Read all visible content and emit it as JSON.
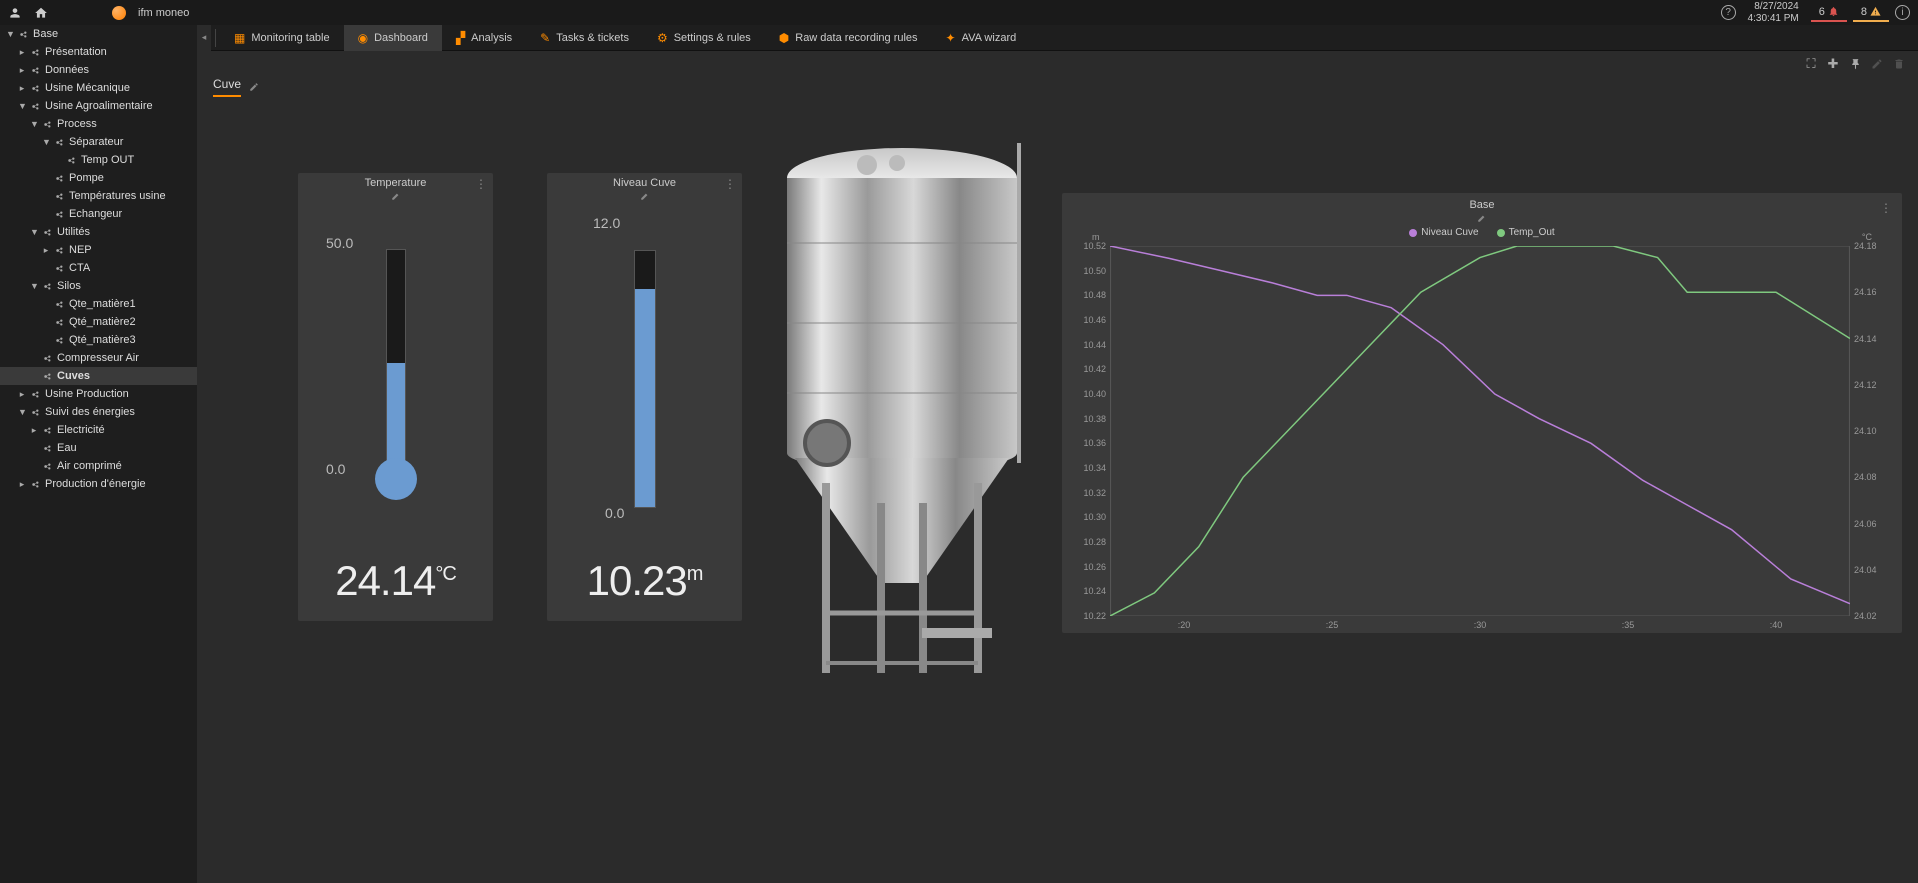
{
  "brand": "ifm moneo",
  "datetime": {
    "date": "8/27/2024",
    "time": "4:30:41 PM"
  },
  "alerts": {
    "red_count": "6",
    "orange_count": "8"
  },
  "tabs": [
    {
      "label": "Monitoring table",
      "icon": "#ff8c00"
    },
    {
      "label": "Dashboard",
      "icon": "#ff8c00",
      "active": true
    },
    {
      "label": "Analysis",
      "icon": "#ff8c00"
    },
    {
      "label": "Tasks & tickets",
      "icon": "#ff8c00"
    },
    {
      "label": "Settings & rules",
      "icon": "#ff8c00"
    },
    {
      "label": "Raw data recording rules",
      "icon": "#ff8c00"
    },
    {
      "label": "AVA wizard",
      "icon": "#ff8c00"
    }
  ],
  "tree": [
    {
      "l": "Base",
      "d": 0,
      "c": "▼"
    },
    {
      "l": "Présentation",
      "d": 1,
      "c": "▸"
    },
    {
      "l": "Données",
      "d": 1,
      "c": "▸"
    },
    {
      "l": "Usine Mécanique",
      "d": 1,
      "c": "▸"
    },
    {
      "l": "Usine Agroalimentaire",
      "d": 1,
      "c": "▼"
    },
    {
      "l": "Process",
      "d": 2,
      "c": "▼"
    },
    {
      "l": "Séparateur",
      "d": 3,
      "c": "▼"
    },
    {
      "l": "Temp OUT",
      "d": 4,
      "c": ""
    },
    {
      "l": "Pompe",
      "d": 3,
      "c": ""
    },
    {
      "l": "Températures usine",
      "d": 3,
      "c": ""
    },
    {
      "l": "Echangeur",
      "d": 3,
      "c": ""
    },
    {
      "l": "Utilités",
      "d": 2,
      "c": "▼"
    },
    {
      "l": "NEP",
      "d": 3,
      "c": "▸"
    },
    {
      "l": "CTA",
      "d": 3,
      "c": ""
    },
    {
      "l": "Silos",
      "d": 2,
      "c": "▼"
    },
    {
      "l": "Qte_matière1",
      "d": 3,
      "c": ""
    },
    {
      "l": "Qté_matière2",
      "d": 3,
      "c": ""
    },
    {
      "l": "Qté_matière3",
      "d": 3,
      "c": ""
    },
    {
      "l": "Compresseur Air",
      "d": 2,
      "c": ""
    },
    {
      "l": "Cuves",
      "d": 2,
      "c": "",
      "active": true
    },
    {
      "l": "Usine Production",
      "d": 1,
      "c": "▸"
    },
    {
      "l": "Suivi des énergies",
      "d": 1,
      "c": "▼"
    },
    {
      "l": "Electricité",
      "d": 2,
      "c": "▸"
    },
    {
      "l": "Eau",
      "d": 2,
      "c": ""
    },
    {
      "l": "Air comprimé",
      "d": 2,
      "c": ""
    },
    {
      "l": "Production d'énergie",
      "d": 1,
      "c": "▸"
    }
  ],
  "dashboard_title": "Cuve",
  "temperature_gauge": {
    "title": "Temperature",
    "max": "50.0",
    "min": "0.0",
    "value": "24.14",
    "unit": "°C",
    "fill_pct": 48.3,
    "fill_color": "#6b9bd1"
  },
  "level_gauge": {
    "title": "Niveau Cuve",
    "max": "12.0",
    "min": "0.0",
    "value": "10.23",
    "unit": "m",
    "fill_pct": 85.3,
    "fill_color": "#6b9bd1"
  },
  "chart": {
    "title": "Base",
    "legend": [
      {
        "label": "Niveau Cuve",
        "color": "#b97fd9"
      },
      {
        "label": "Temp_Out",
        "color": "#7fc97f"
      }
    ],
    "y_left_unit": "m",
    "y_right_unit": "°C",
    "y_left_ticks": [
      "10.52",
      "10.50",
      "10.48",
      "10.46",
      "10.44",
      "10.42",
      "10.40",
      "10.38",
      "10.36",
      "10.34",
      "10.32",
      "10.30",
      "10.28",
      "10.26",
      "10.24",
      "10.22"
    ],
    "y_right_ticks": [
      "24.18",
      "24.16",
      "24.14",
      "24.12",
      "24.10",
      "24.08",
      "24.06",
      "24.04",
      "24.02"
    ],
    "x_ticks": [
      ":20",
      ":25",
      ":30",
      ":35",
      ":40"
    ],
    "series_niveau": {
      "color": "#b97fd9",
      "points": [
        [
          0,
          10.52
        ],
        [
          8,
          10.51
        ],
        [
          15,
          10.5
        ],
        [
          22,
          10.49
        ],
        [
          28,
          10.48
        ],
        [
          32,
          10.48
        ],
        [
          38,
          10.47
        ],
        [
          45,
          10.44
        ],
        [
          52,
          10.4
        ],
        [
          58,
          10.38
        ],
        [
          65,
          10.36
        ],
        [
          72,
          10.33
        ],
        [
          78,
          10.31
        ],
        [
          84,
          10.29
        ],
        [
          88,
          10.27
        ],
        [
          92,
          10.25
        ],
        [
          96,
          10.24
        ],
        [
          100,
          10.23
        ]
      ]
    },
    "series_temp": {
      "color": "#7fc97f",
      "points": [
        [
          0,
          24.02
        ],
        [
          6,
          24.03
        ],
        [
          12,
          24.05
        ],
        [
          18,
          24.08
        ],
        [
          24,
          24.1
        ],
        [
          30,
          24.12
        ],
        [
          36,
          24.14
        ],
        [
          42,
          24.16
        ],
        [
          50,
          24.175
        ],
        [
          55,
          24.18
        ],
        [
          60,
          24.18
        ],
        [
          68,
          24.18
        ],
        [
          74,
          24.175
        ],
        [
          78,
          24.16
        ],
        [
          84,
          24.16
        ],
        [
          90,
          24.16
        ],
        [
          95,
          24.15
        ],
        [
          100,
          24.14
        ]
      ]
    },
    "y_left_range": [
      10.22,
      10.52
    ],
    "y_right_range": [
      24.02,
      24.18
    ]
  }
}
